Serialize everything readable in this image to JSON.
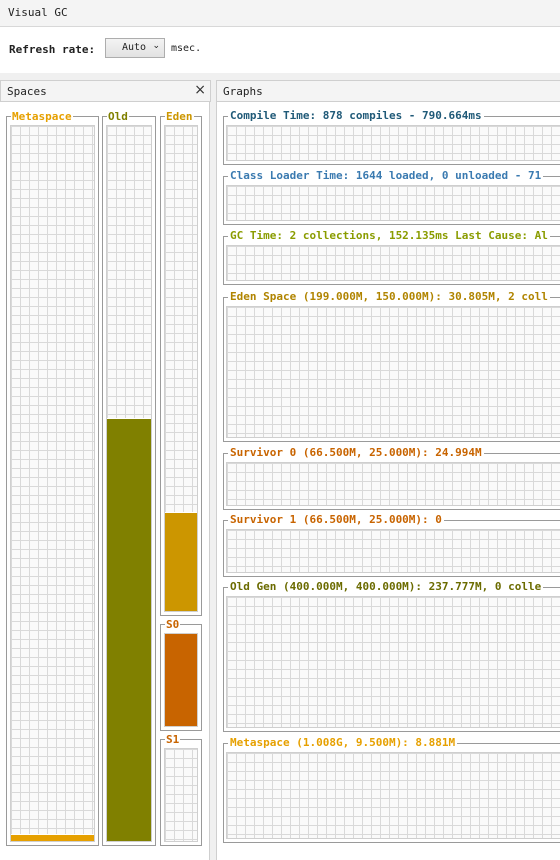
{
  "window": {
    "title": "Visual GC"
  },
  "toolbar": {
    "refresh_label": "Refresh rate:",
    "refresh_value": "Auto",
    "refresh_unit": "msec."
  },
  "spaces_panel": {
    "title": "Spaces",
    "close_icon": "close-icon",
    "spaces": [
      {
        "label": "Metaspace",
        "color": "#e6a000",
        "fill_color": "#e6a000",
        "used_fraction": 0.009
      },
      {
        "label": "Old",
        "color": "#808000",
        "fill_color": "#808000",
        "used_fraction": 0.59
      },
      {
        "label": "Eden",
        "color": "#cc9600",
        "fill_color": "#cc9600",
        "used_fraction": 0.203
      },
      {
        "label": "S0",
        "color": "#c86400",
        "fill_color": "#c86400",
        "used_fraction": 1.0
      },
      {
        "label": "S1",
        "color": "#c86400",
        "fill_color": "#c86400",
        "used_fraction": 0.0
      }
    ]
  },
  "graphs_panel": {
    "title": "Graphs",
    "graphs": [
      {
        "title": "Compile Time: 878 compiles - 790.664ms",
        "color": "#205a78"
      },
      {
        "title": "Class Loader Time: 1644 loaded, 0 unloaded - 71",
        "color": "#3a7ab0"
      },
      {
        "title": "GC Time: 2 collections, 152.135ms Last Cause: Al",
        "color": "#8a9c00"
      },
      {
        "title": "Eden Space (199.000M, 150.000M): 30.805M, 2 coll",
        "color": "#b08400"
      },
      {
        "title": "Survivor 0 (66.500M, 25.000M): 24.994M",
        "color": "#c86400"
      },
      {
        "title": "Survivor 1 (66.500M, 25.000M): 0",
        "color": "#c86400"
      },
      {
        "title": "Old Gen (400.000M, 400.000M): 237.777M, 0 colle",
        "color": "#6b6b00"
      },
      {
        "title": "Metaspace (1.008G, 9.500M): 8.881M",
        "color": "#e6a000"
      }
    ]
  }
}
